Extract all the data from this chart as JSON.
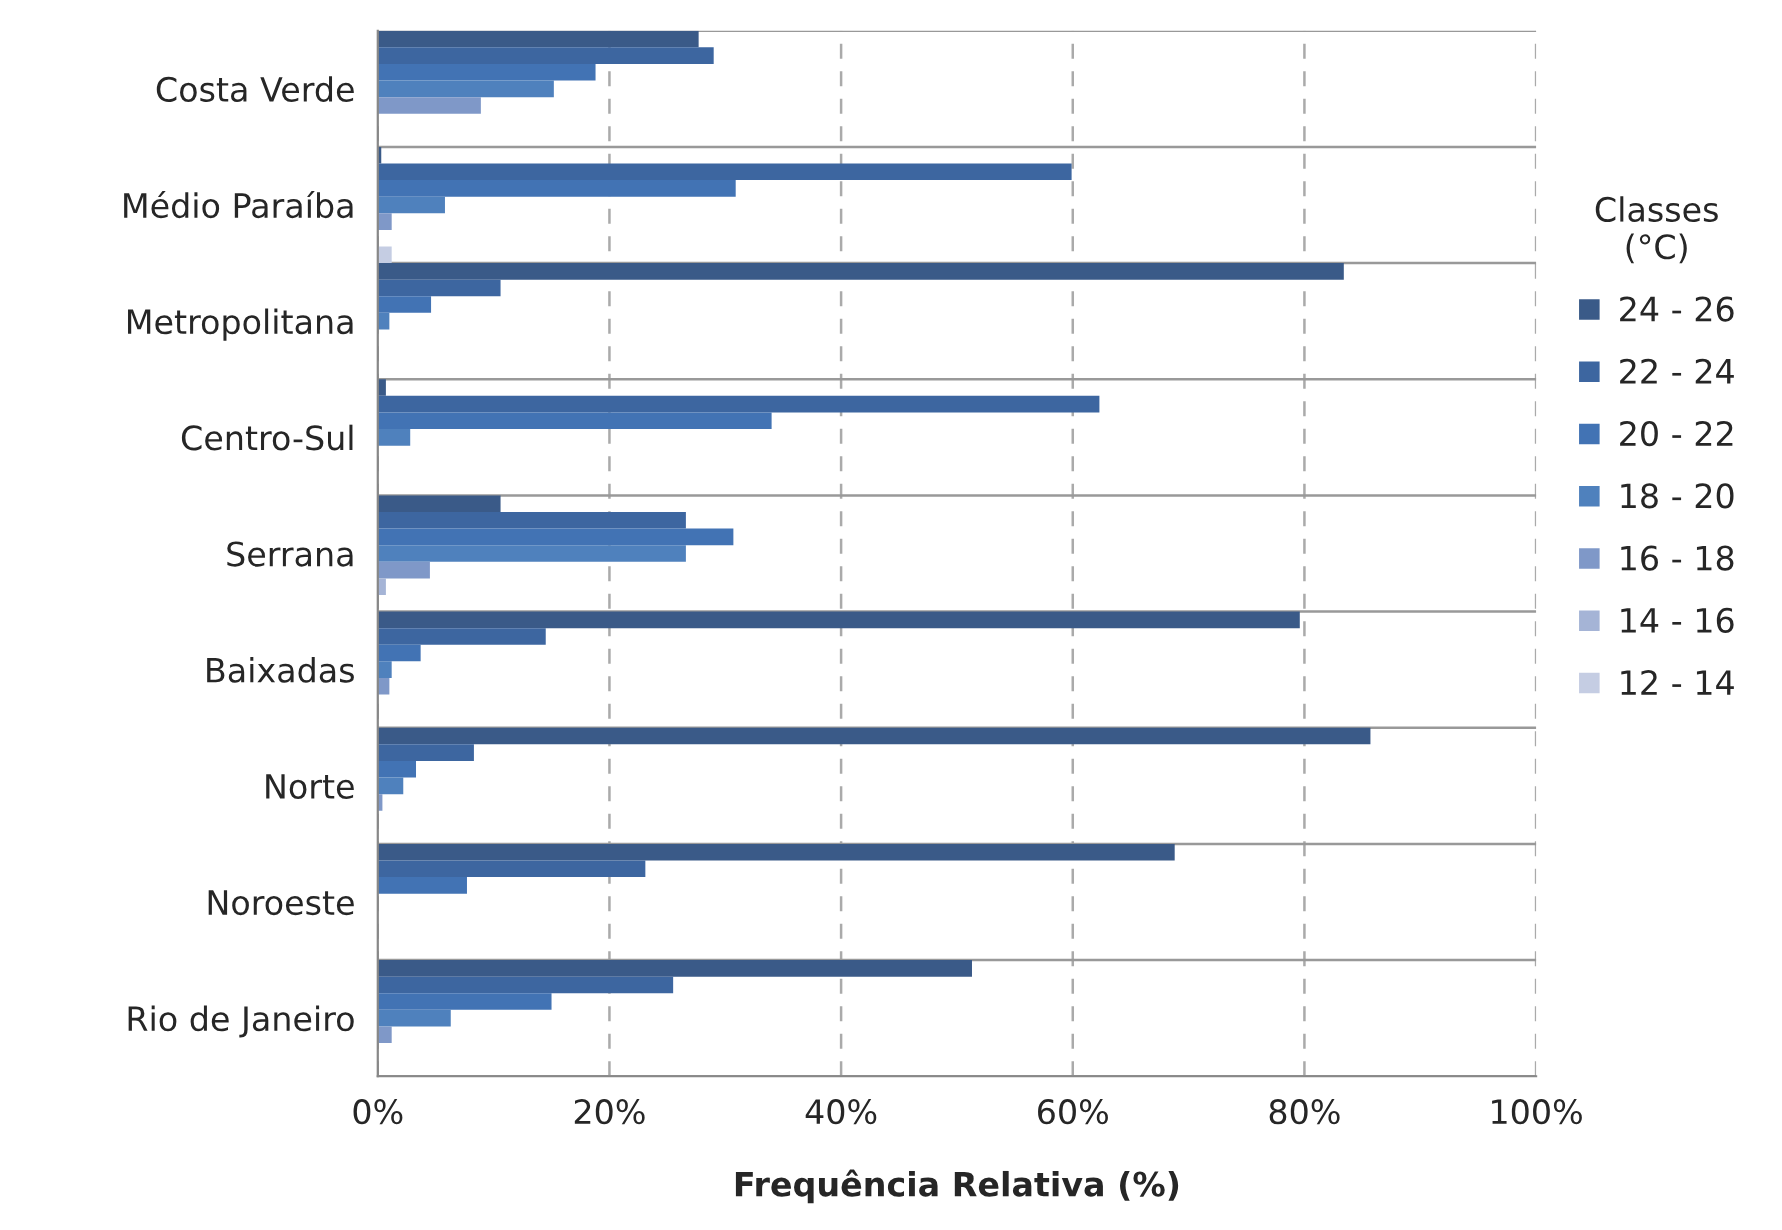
{
  "chart_data": {
    "type": "bar",
    "orientation": "horizontal",
    "xlabel": "Frequência Relativa (%)",
    "legend_title": "Classes\n(°C)",
    "categories": [
      "Costa Verde",
      "Médio Paraíba",
      "Metropolitana",
      "Centro-Sul",
      "Serrana",
      "Baixadas",
      "Norte",
      "Noroeste",
      "Rio de Janeiro"
    ],
    "series": [
      {
        "name": "24 - 26",
        "color": "#3a5a88",
        "values": [
          27.7,
          0.3,
          83.4,
          0.7,
          10.6,
          79.6,
          85.7,
          68.8,
          51.3
        ]
      },
      {
        "name": "22 - 24",
        "color": "#3d66a0",
        "values": [
          29.0,
          59.9,
          10.6,
          62.3,
          26.6,
          14.5,
          8.3,
          23.1,
          25.5
        ]
      },
      {
        "name": "20 - 22",
        "color": "#4273b4",
        "values": [
          18.8,
          30.9,
          4.6,
          34.0,
          30.7,
          3.7,
          3.3,
          7.7,
          15.0
        ]
      },
      {
        "name": "18 - 20",
        "color": "#4f81bd",
        "values": [
          15.2,
          5.8,
          1.0,
          2.8,
          26.6,
          1.2,
          2.2,
          0,
          6.3
        ]
      },
      {
        "name": "16 - 18",
        "color": "#7f98c8",
        "values": [
          8.9,
          1.2,
          0,
          0,
          4.5,
          1.0,
          0.4,
          0,
          1.2
        ]
      },
      {
        "name": "14 - 16",
        "color": "#a5b4d6",
        "values": [
          0,
          0,
          0,
          0,
          0.7,
          0,
          0,
          0,
          0
        ]
      },
      {
        "name": "12 - 14",
        "color": "#c5cde3",
        "values": [
          0,
          1.2,
          0,
          0,
          0,
          0,
          0,
          0,
          0
        ]
      }
    ],
    "xlim": [
      0,
      100
    ],
    "xticks": [
      {
        "value": 0,
        "label": "0%"
      },
      {
        "value": 20,
        "label": "20%"
      },
      {
        "value": 40,
        "label": "40%"
      },
      {
        "value": 60,
        "label": "60%"
      },
      {
        "value": 80,
        "label": "80%"
      },
      {
        "value": 100,
        "label": "100%"
      }
    ],
    "grid": true,
    "legend": "right"
  }
}
